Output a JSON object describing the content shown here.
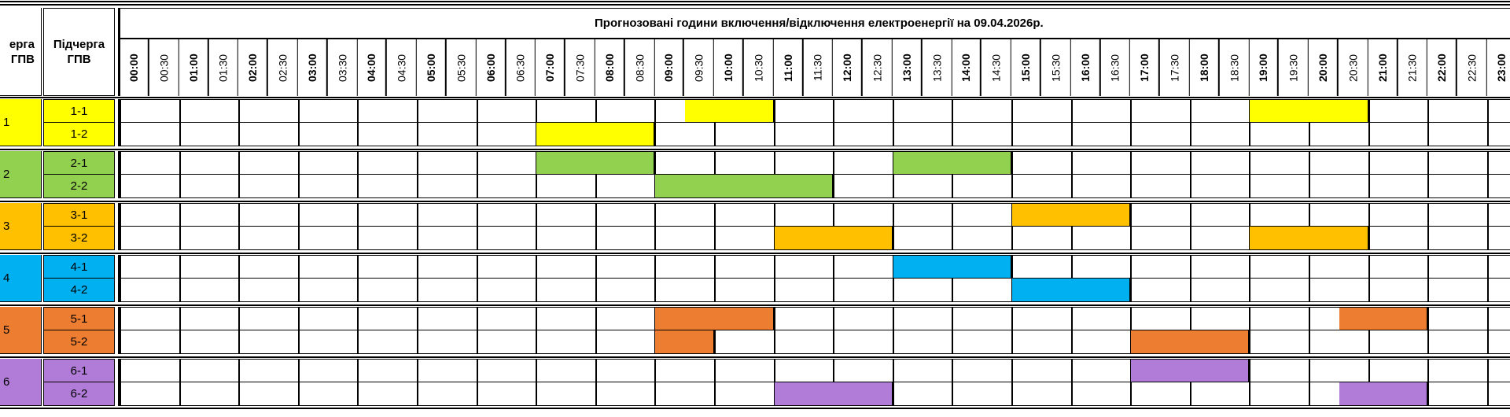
{
  "header": {
    "queue_header_line1": "ерга",
    "queue_header_line2": "ГПВ",
    "subqueue_header_line1": "Підчерга",
    "subqueue_header_line2": "ГПВ",
    "title": "Прогнозовані години включення/відключення електроенергії на 09.04.2026р."
  },
  "time_slots": [
    "00:00",
    "00:30",
    "01:00",
    "01:30",
    "02:00",
    "02:30",
    "03:00",
    "03:30",
    "04:00",
    "04:30",
    "05:00",
    "05:30",
    "06:00",
    "06:30",
    "07:00",
    "07:30",
    "08:00",
    "08:30",
    "09:00",
    "09:30",
    "10:00",
    "10:30",
    "11:00",
    "11:30",
    "12:00",
    "12:30",
    "13:00",
    "13:30",
    "14:00",
    "14:30",
    "15:00",
    "15:30",
    "16:00",
    "16:30",
    "17:00",
    "17:30",
    "18:00",
    "18:30",
    "19:00",
    "19:30",
    "20:00",
    "20:30",
    "21:00",
    "21:30",
    "22:00",
    "22:30",
    "23:00"
  ],
  "groups": [
    {
      "queue": "1",
      "color": "#ffff00",
      "subqueues": [
        {
          "label": "1-1",
          "outages": [
            [
              9.5,
              11
            ],
            [
              19,
              21
            ]
          ]
        },
        {
          "label": "1-2",
          "outages": [
            [
              7,
              9
            ]
          ]
        }
      ]
    },
    {
      "queue": "2",
      "color": "#92d050",
      "subqueues": [
        {
          "label": "2-1",
          "outages": [
            [
              7,
              9
            ],
            [
              13,
              15
            ]
          ]
        },
        {
          "label": "2-2",
          "outages": [
            [
              9,
              12
            ]
          ]
        }
      ]
    },
    {
      "queue": "3",
      "color": "#ffc000",
      "subqueues": [
        {
          "label": "3-1",
          "outages": [
            [
              15,
              17
            ]
          ]
        },
        {
          "label": "3-2",
          "outages": [
            [
              11,
              13
            ],
            [
              19,
              21
            ]
          ]
        }
      ]
    },
    {
      "queue": "4",
      "color": "#00b0f0",
      "subqueues": [
        {
          "label": "4-1",
          "outages": [
            [
              13,
              15
            ]
          ]
        },
        {
          "label": "4-2",
          "outages": [
            [
              15,
              17
            ]
          ]
        }
      ]
    },
    {
      "queue": "5",
      "color": "#ed7d31",
      "subqueues": [
        {
          "label": "5-1",
          "outages": [
            [
              9,
              11
            ],
            [
              20.5,
              22
            ]
          ]
        },
        {
          "label": "5-2",
          "outages": [
            [
              9,
              10
            ],
            [
              17,
              19
            ]
          ]
        }
      ]
    },
    {
      "queue": "6",
      "color": "#b07cd8",
      "subqueues": [
        {
          "label": "6-1",
          "outages": [
            [
              17,
              19
            ]
          ]
        },
        {
          "label": "6-2",
          "outages": [
            [
              11,
              13
            ],
            [
              20.5,
              22
            ]
          ]
        }
      ]
    }
  ]
}
